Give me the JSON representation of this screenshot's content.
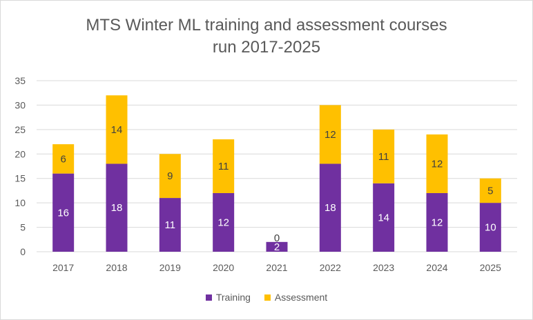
{
  "chart_data": {
    "type": "bar",
    "stacked": true,
    "title_lines": [
      "MTS Winter ML training and assessment courses",
      "run 2017-2025"
    ],
    "categories": [
      "2017",
      "2018",
      "2019",
      "2020",
      "2021",
      "2022",
      "2023",
      "2024",
      "2025"
    ],
    "series": [
      {
        "name": "Training",
        "color": "#7030A0",
        "label_color": "#ffffff",
        "values": [
          16,
          18,
          11,
          12,
          2,
          18,
          14,
          12,
          10
        ]
      },
      {
        "name": "Assessment",
        "color": "#FFC000",
        "label_color": "#404040",
        "values": [
          6,
          14,
          9,
          11,
          0,
          12,
          11,
          12,
          5
        ]
      }
    ],
    "ylim": [
      0,
      35
    ],
    "yticks": [
      0,
      5,
      10,
      15,
      20,
      25,
      30,
      35
    ],
    "grid": true,
    "legend": "bottom",
    "xlabel": "",
    "ylabel": ""
  }
}
